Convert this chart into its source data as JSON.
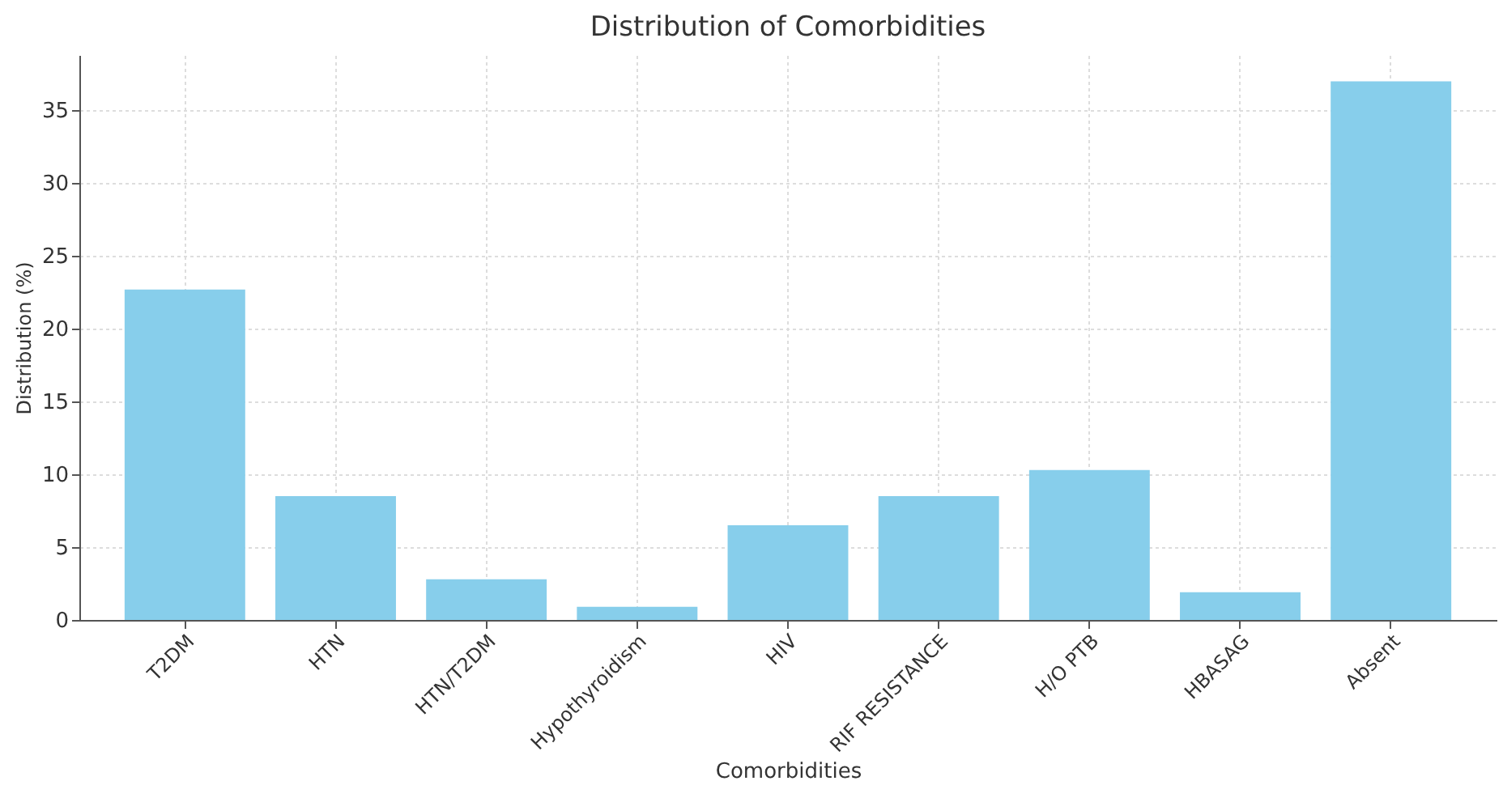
{
  "chart_data": {
    "type": "bar",
    "title": "Distribution of Comorbidities",
    "xlabel": "Comorbidities",
    "ylabel": "Distribution (%)",
    "categories": [
      "T2DM",
      "HTN",
      "HTN/T2DM",
      "Hypothyroidism",
      "HIV",
      "RIF RESISTANCE",
      "H/O PTB",
      "HBASAG",
      "Absent"
    ],
    "values": [
      22.7,
      8.5,
      2.8,
      0.9,
      6.5,
      8.5,
      10.3,
      1.9,
      37.0
    ],
    "color": "#87ceeb",
    "ylim": [
      0,
      38.8
    ],
    "yticks": [
      0,
      5,
      10,
      15,
      20,
      25,
      30,
      35
    ],
    "grid": true
  }
}
